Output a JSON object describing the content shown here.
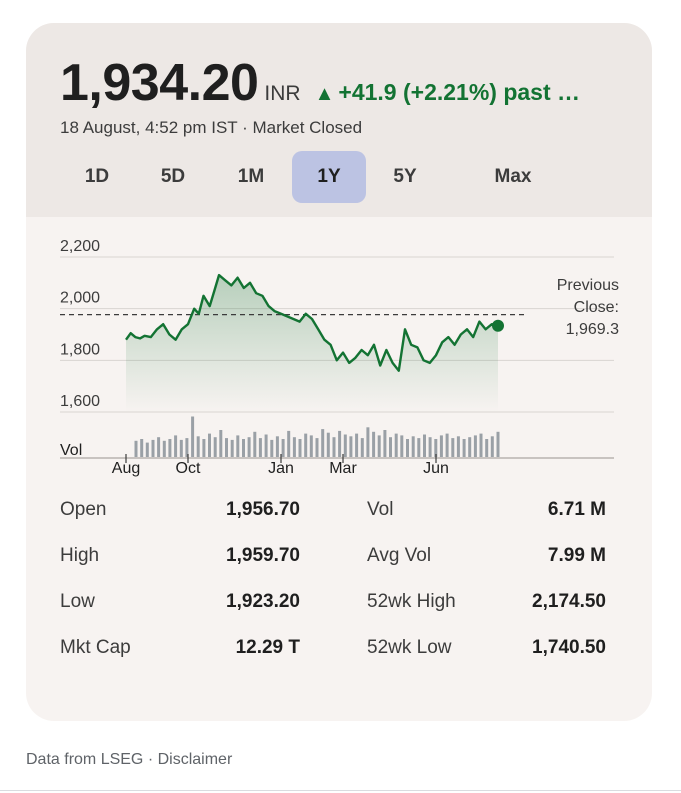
{
  "header": {
    "price": "1,934.20",
    "currency": "INR",
    "change_arrow": "▲",
    "change": "+41.9 (+2.21%) past …",
    "subline": "18 August, 4:52 pm IST · Market Closed",
    "change_color": "#137333"
  },
  "tabs": [
    {
      "label": "1D",
      "active": false
    },
    {
      "label": "5D",
      "active": false
    },
    {
      "label": "1M",
      "active": false
    },
    {
      "label": "1Y",
      "active": true
    },
    {
      "label": "5Y",
      "active": false
    },
    {
      "label": "Max",
      "active": false
    }
  ],
  "chart_data": {
    "type": "line",
    "y_ticks": [
      "2,200",
      "2,000",
      "1,800",
      "1,600"
    ],
    "ylim": [
      1600,
      2200
    ],
    "x_tick_labels": [
      "Aug",
      "Oct",
      "Jan",
      "Mar",
      "Jun"
    ],
    "x_tick_months": [
      0,
      2,
      5,
      7,
      10
    ],
    "month_span": 12,
    "previous_close_label": [
      "Previous",
      "Close:",
      "1,969.3"
    ],
    "previous_close": 1969.3,
    "line_color": "#137333",
    "series": [
      {
        "month": [
          0.0,
          0.15,
          0.3,
          0.45,
          0.6,
          0.8,
          1.0,
          1.2,
          1.4,
          1.6,
          1.8,
          2.0,
          2.2,
          2.35,
          2.5,
          2.7,
          2.85,
          3.0,
          3.2,
          3.4,
          3.6,
          3.8,
          4.0,
          4.2,
          4.4,
          4.6,
          4.8,
          5.0,
          5.2,
          5.4,
          5.6,
          5.8,
          6.0,
          6.2,
          6.4,
          6.6,
          6.8,
          7.0,
          7.2,
          7.4,
          7.6,
          7.8,
          8.0,
          8.2,
          8.4,
          8.6,
          8.8,
          9.0,
          9.2,
          9.4,
          9.6,
          9.8,
          10.0,
          10.2,
          10.4,
          10.6,
          10.8,
          11.0,
          11.2,
          11.4,
          11.6,
          11.8,
          12.0
        ],
        "values": [
          1880,
          1905,
          1890,
          1885,
          1895,
          1890,
          1920,
          1940,
          1900,
          1880,
          1920,
          1940,
          2000,
          1980,
          2050,
          2010,
          2070,
          2130,
          2110,
          2090,
          2120,
          2080,
          2100,
          2060,
          2050,
          2010,
          1990,
          1980,
          1970,
          1960,
          1950,
          1980,
          1960,
          1920,
          1880,
          1860,
          1800,
          1830,
          1790,
          1810,
          1840,
          1820,
          1860,
          1780,
          1840,
          1790,
          1760,
          1920,
          1860,
          1850,
          1800,
          1790,
          1820,
          1870,
          1890,
          1860,
          1900,
          1920,
          1890,
          1950,
          1920,
          1940,
          1934
        ]
      }
    ],
    "volume_label": "Vol",
    "volume": [
      1.8,
      2.0,
      1.6,
      1.9,
      2.2,
      1.8,
      2.0,
      2.4,
      1.9,
      2.1,
      4.5,
      2.3,
      2.0,
      2.6,
      2.2,
      3.0,
      2.1,
      1.9,
      2.4,
      2.0,
      2.2,
      2.8,
      2.1,
      2.5,
      1.9,
      2.3,
      2.0,
      2.9,
      2.2,
      2.0,
      2.6,
      2.4,
      2.1,
      3.1,
      2.7,
      2.2,
      2.9,
      2.5,
      2.3,
      2.6,
      2.1,
      3.3,
      2.8,
      2.4,
      3.0,
      2.2,
      2.6,
      2.4,
      2.0,
      2.3,
      2.1,
      2.5,
      2.2,
      2.0,
      2.4,
      2.6,
      2.1,
      2.3,
      2.0,
      2.2,
      2.4,
      2.6,
      2.0,
      2.3,
      2.8
    ]
  },
  "stats": [
    {
      "label": "Open",
      "value": "1,956.70",
      "label2": "Vol",
      "value2": "6.71 M"
    },
    {
      "label": "High",
      "value": "1,959.70",
      "label2": "Avg Vol",
      "value2": "7.99 M"
    },
    {
      "label": "Low",
      "value": "1,923.20",
      "label2": "52wk High",
      "value2": "2,174.50"
    },
    {
      "label": "Mkt Cap",
      "value": "12.29 T",
      "label2": "52wk Low",
      "value2": "1,740.50"
    }
  ],
  "footer": "Data from LSEG · Disclaimer"
}
